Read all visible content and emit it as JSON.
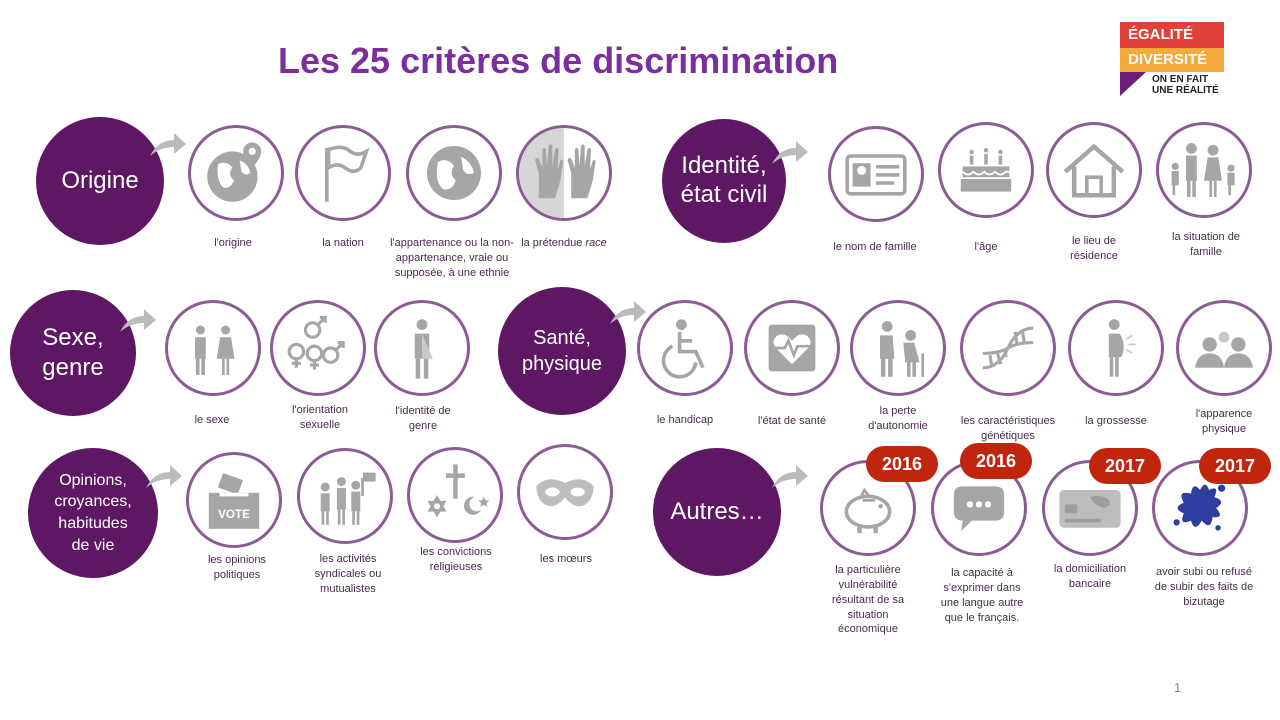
{
  "title": "Les 25 critères de discrimination",
  "logo": {
    "line1": "ÉGALITÉ",
    "line2": "DIVERSITÉ",
    "line3": "ON EN FAIT\nUNE RÉALITÉ"
  },
  "page_number": "1",
  "colors": {
    "category": "#5E1762",
    "title": "#7B2F9E",
    "ring": "#8A5B94",
    "badge": "#C0260E",
    "icon": "#A6A6A6"
  },
  "categories": {
    "origine": "Origine",
    "identite": "Identité,\nétat civil",
    "sexe": "Sexe,\ngenre",
    "sante": "Santé,\nphysique",
    "opinions": "Opinions,\ncroyances,\nhabitudes\nde vie",
    "autres": "Autres…"
  },
  "criteria": {
    "origine": "l'origine",
    "nation": "la nation",
    "ethnie": "l'appartenance ou la non-\nappartenance, vraie ou\nsupposée, à une ethnie",
    "race_prefix": "la prétendue ",
    "race_word": "race",
    "nom": "le nom de famille",
    "age": "l'âge",
    "residence": "le lieu de\nrésidence",
    "famille": "la situation de\nfamille",
    "sexe": "le sexe",
    "orientation": "l'orientation\nsexuelle",
    "identite_genre": "l'identité de\ngenre",
    "handicap": "le handicap",
    "sante": "l'état de santé",
    "autonomie": "la perte\nd'autonomie",
    "genetique": "les caractéristiques\ngénétiques",
    "grossesse": "la grossesse",
    "apparence": "l'apparence\nphysique",
    "opinions": "les opinions\npolitiques",
    "syndicales": "les activités\nsyndicales ou\nmutualistes",
    "religieuses": "les convictions\nreligieuses",
    "moeurs": "les mœurs",
    "vulnerabilite": "la particulière\nvulnérabilité\nrésultant de sa\nsituation\néconomique",
    "langue": "la capacité à\ns'exprimer dans\nune langue autre\nque le français.",
    "domiciliation": "la domiciliation\nbancaire",
    "bizutage": "avoir subi ou refusé\nde subir des faits de\nbizutage"
  },
  "badges": {
    "vulnerabilite": "2016",
    "langue": "2016",
    "domiciliation": "2017",
    "bizutage": "2017"
  },
  "icons": {
    "origine": "globe-pin-icon",
    "nation": "flag-icon",
    "ethnie": "globe-icon",
    "race": "hands-icon",
    "nom": "id-card-icon",
    "age": "birthday-cake-icon",
    "residence": "house-icon",
    "famille": "family-icon",
    "sexe": "man-woman-icon",
    "orientation": "gender-symbols-icon",
    "identite_genre": "gender-identity-icon",
    "handicap": "wheelchair-icon",
    "sante": "heart-monitor-icon",
    "autonomie": "elderly-icon",
    "genetique": "dna-icon",
    "grossesse": "pregnant-woman-icon",
    "apparence": "silhouettes-icon",
    "opinions": "ballot-box-icon",
    "syndicales": "protest-icon",
    "religieuses": "religious-symbols-icon",
    "moeurs": "mask-icon",
    "vulnerabilite": "piggy-bank-icon",
    "langue": "speech-bubble-icon",
    "domiciliation": "bank-card-icon",
    "bizutage": "splash-icon"
  },
  "vote_text": "VOTE"
}
